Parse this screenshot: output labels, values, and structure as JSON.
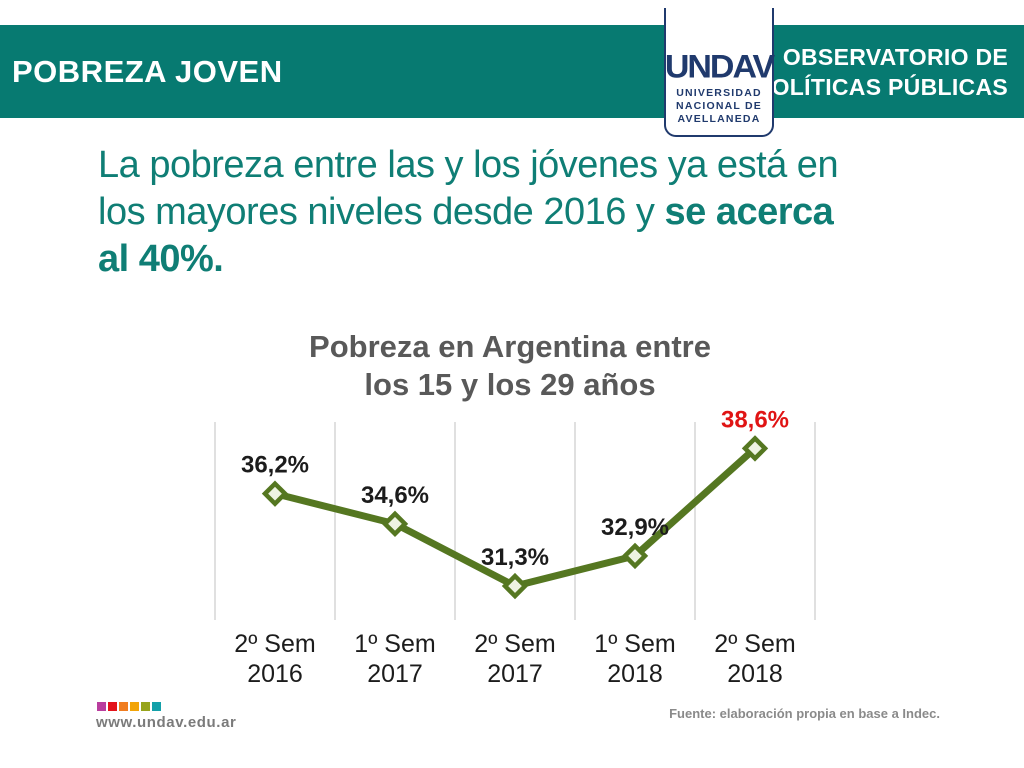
{
  "header": {
    "title": "POBREZA JOVEN",
    "org_line1": "OBSERVATORIO DE",
    "org_line2": "POLÍTICAS PÚBLICAS",
    "logo": {
      "acronym": "UNDAV",
      "name_line1": "UNIVERSIDAD",
      "name_line2": "NACIONAL DE",
      "name_line3": "AVELLANEDA"
    }
  },
  "theme": {
    "bar_teal": "#077a71",
    "headline_teal": "#0f7e75",
    "logo_navy": "#203a6d",
    "title_gray": "#595959"
  },
  "headline": {
    "line1": "La pobreza entre las y los jóvenes ya está en",
    "line2_regular": "los mayores niveles desde 2016 y ",
    "line2_bold": "se acerca",
    "line3_bold": "al 40%."
  },
  "chart_data": {
    "type": "line",
    "title": "Pobreza en Argentina entre los 15 y los 29 años",
    "title_lines": [
      "Pobreza en Argentina entre",
      "los 15 y los 29 años"
    ],
    "categories": [
      "2º Sem 2016",
      "1º Sem 2017",
      "2º Sem 2017",
      "1º Sem 2018",
      "2º Sem 2018"
    ],
    "category_lines": [
      [
        "2º Sem",
        "2016"
      ],
      [
        "1º Sem",
        "2017"
      ],
      [
        "2º Sem",
        "2017"
      ],
      [
        "1º Sem",
        "2018"
      ],
      [
        "2º Sem",
        "2018"
      ]
    ],
    "values": [
      36.2,
      34.6,
      31.3,
      32.9,
      38.6
    ],
    "value_labels": [
      "36,2%",
      "34,6%",
      "31,3%",
      "32,9%",
      "38,6%"
    ],
    "highlight_index": 4,
    "unit": "%",
    "ylim": [
      29.5,
      40
    ],
    "grid": "vertical-only",
    "legend": false,
    "xlabel": "",
    "ylabel": "",
    "colors": {
      "line": "#557721",
      "marker_fill": "#eef3e2",
      "value_label": "#1c1c1c",
      "highlight_label": "#e01414",
      "gridline": "#d6d6d6",
      "axis_label": "#1c1c1c"
    }
  },
  "footer": {
    "website": "www.undav.edu.ar",
    "source": "Fuente: elaboración propia en base a Indec.",
    "dot_colors": [
      "#b93d9e",
      "#e3131b",
      "#f07d21",
      "#f2a408",
      "#97a41c",
      "#13a0a9"
    ]
  }
}
